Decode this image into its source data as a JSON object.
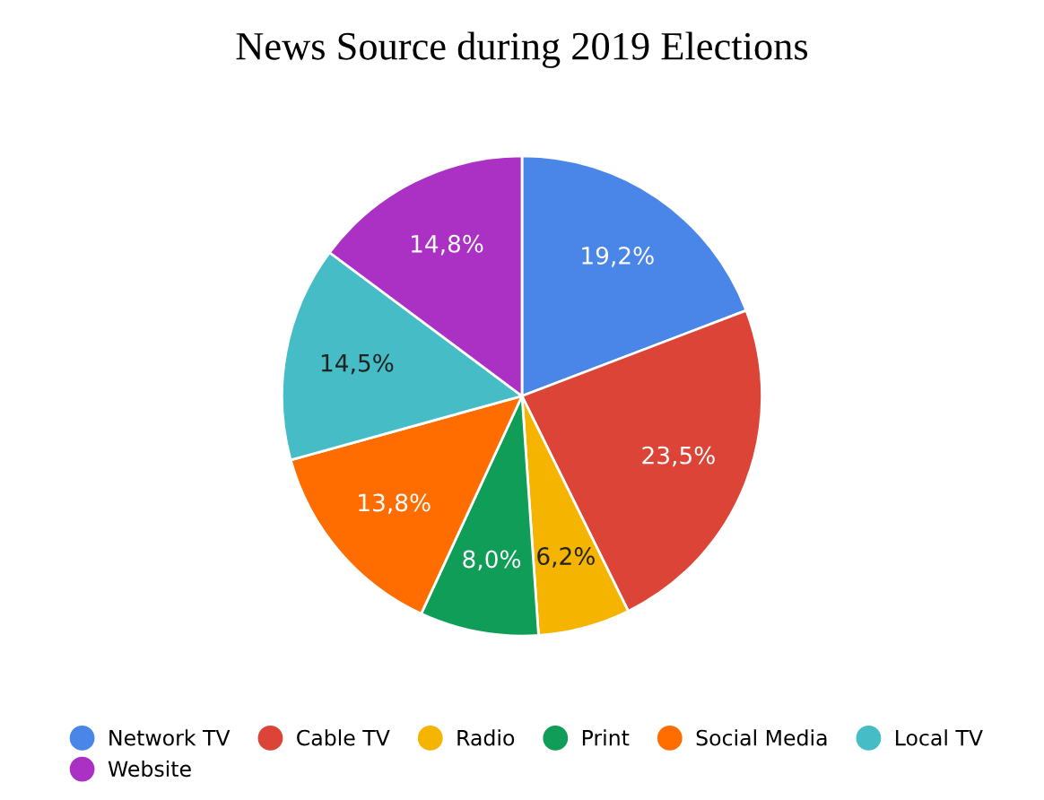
{
  "chart_data": {
    "type": "pie",
    "title": "News Source during 2019 Elections",
    "categories": [
      "Network TV",
      "Cable TV",
      "Radio",
      "Print",
      "Social Media",
      "Local TV",
      "Website"
    ],
    "values": [
      19.2,
      23.5,
      6.2,
      8.0,
      13.8,
      14.5,
      14.8
    ],
    "value_labels": [
      "19,2%",
      "23,5%",
      "6,2%",
      "8,0%",
      "13,8%",
      "14,5%",
      "14,8%"
    ],
    "colors": [
      "#4a86e8",
      "#db4437",
      "#f4b400",
      "#0f9d58",
      "#ff6d00",
      "#46bdc6",
      "#ab30c4"
    ],
    "legend": "bottom"
  }
}
